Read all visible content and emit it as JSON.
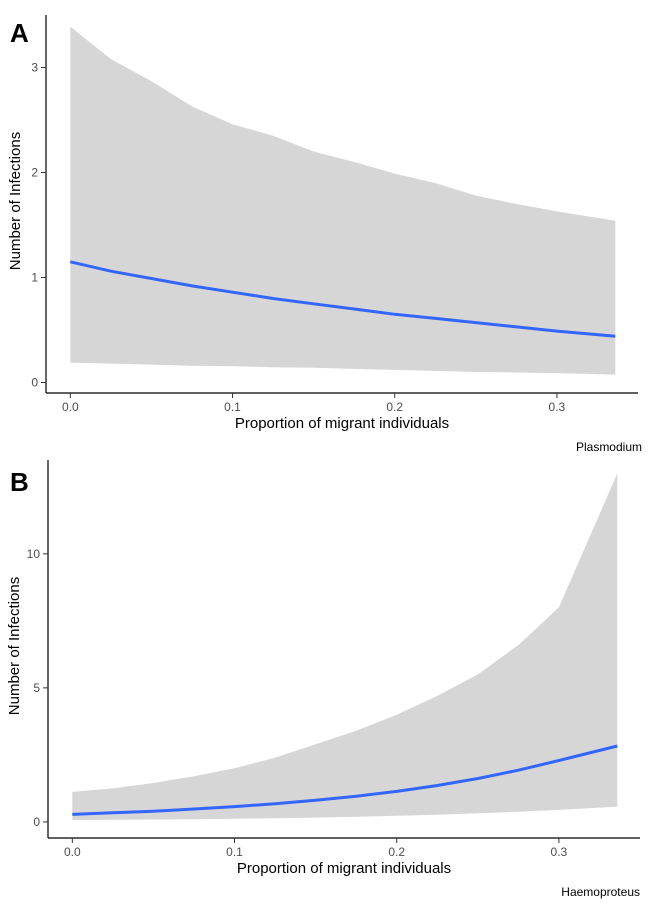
{
  "chart_data": [
    {
      "type": "line",
      "panel_label": "A",
      "xlabel": "Proportion of migrant individuals",
      "ylabel": "Number of Infections",
      "caption": "Plasmodium",
      "xlim": [
        -0.015,
        0.35
      ],
      "ylim": [
        -0.1,
        3.5
      ],
      "x_ticks": [
        0.0,
        0.1,
        0.2,
        0.3
      ],
      "x_tick_labels": [
        "0.0",
        "0.1",
        "0.2",
        "0.3"
      ],
      "y_ticks": [
        0,
        1,
        2,
        3
      ],
      "y_tick_labels": [
        "0",
        "1",
        "2",
        "3"
      ],
      "grid": false,
      "colors": {
        "line": "#3366ff",
        "ribbon": "#d6d6d6"
      },
      "series": [
        {
          "x": [
            0.0,
            0.025,
            0.05,
            0.075,
            0.1,
            0.125,
            0.15,
            0.175,
            0.2,
            0.225,
            0.25,
            0.275,
            0.3,
            0.336
          ],
          "y": [
            1.15,
            1.06,
            0.99,
            0.92,
            0.86,
            0.8,
            0.75,
            0.7,
            0.65,
            0.61,
            0.57,
            0.53,
            0.49,
            0.44
          ],
          "lower": [
            0.19,
            0.18,
            0.17,
            0.16,
            0.155,
            0.145,
            0.14,
            0.13,
            0.12,
            0.11,
            0.1,
            0.095,
            0.09,
            0.075
          ],
          "upper": [
            3.39,
            3.08,
            2.87,
            2.63,
            2.46,
            2.35,
            2.2,
            2.1,
            1.99,
            1.9,
            1.78,
            1.7,
            1.63,
            1.54
          ]
        }
      ]
    },
    {
      "type": "line",
      "panel_label": "B",
      "xlabel": "Proportion of migrant individuals",
      "ylabel": "Number of Infections",
      "caption": "Haemoproteus",
      "xlim": [
        -0.015,
        0.35
      ],
      "ylim": [
        -0.6,
        13.5
      ],
      "x_ticks": [
        0.0,
        0.1,
        0.2,
        0.3
      ],
      "x_tick_labels": [
        "0.0",
        "0.1",
        "0.2",
        "0.3"
      ],
      "y_ticks": [
        0,
        5,
        10
      ],
      "y_tick_labels": [
        "0",
        "5",
        "10"
      ],
      "grid": false,
      "colors": {
        "line": "#3366ff",
        "ribbon": "#d6d6d6"
      },
      "series": [
        {
          "x": [
            0.0,
            0.025,
            0.05,
            0.075,
            0.1,
            0.125,
            0.15,
            0.175,
            0.2,
            0.225,
            0.25,
            0.275,
            0.3,
            0.336
          ],
          "y": [
            0.28,
            0.34,
            0.4,
            0.48,
            0.57,
            0.68,
            0.81,
            0.96,
            1.14,
            1.36,
            1.62,
            1.93,
            2.29,
            2.83
          ],
          "lower": [
            0.07,
            0.08,
            0.09,
            0.1,
            0.12,
            0.14,
            0.16,
            0.19,
            0.23,
            0.27,
            0.32,
            0.38,
            0.45,
            0.57
          ],
          "upper": [
            1.12,
            1.25,
            1.45,
            1.7,
            2.0,
            2.4,
            2.9,
            3.4,
            4.0,
            4.7,
            5.5,
            6.6,
            8.0,
            13.0
          ]
        }
      ]
    }
  ]
}
